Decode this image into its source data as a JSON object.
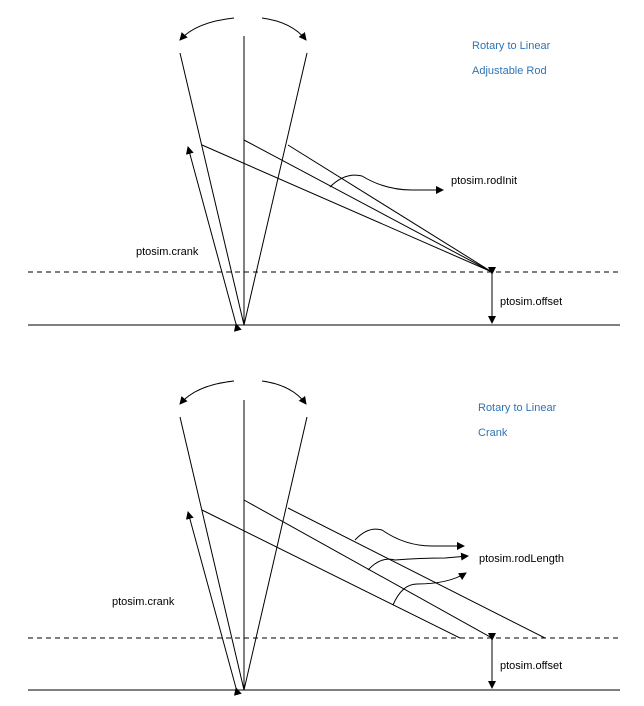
{
  "colors": {
    "title": "#2e74b5",
    "line": "#000000",
    "background": "#ffffff"
  },
  "top_panel": {
    "title_line1": "Rotary to Linear",
    "title_line2": "Adjustable Rod",
    "crank_label": "ptosim.crank",
    "rod_label": "ptosim.rodInit",
    "offset_label": "ptosim.offset"
  },
  "bottom_panel": {
    "title_line1": "Rotary to Linear",
    "title_line2": "Crank",
    "crank_label": "ptosim.crank",
    "rod_label": "ptosim.rodLength",
    "offset_label": "ptosim.offset"
  }
}
